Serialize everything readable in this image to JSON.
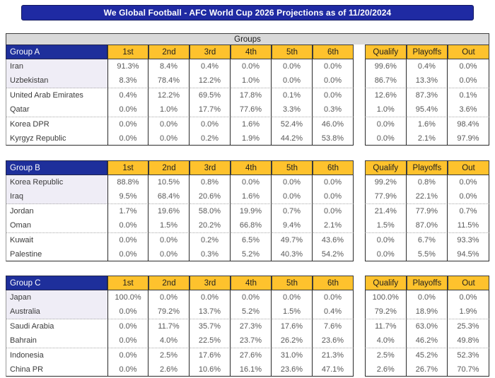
{
  "title": "We Global Football - AFC World Cup 2026 Projections as of 11/20/2024",
  "section_header": "Groups",
  "position_headers": [
    "1st",
    "2nd",
    "3rd",
    "4th",
    "5th",
    "6th"
  ],
  "outcome_headers": [
    "Qualify",
    "Playoffs",
    "Out"
  ],
  "colors": {
    "title_bar_blue": "#1f2aa3",
    "group_header_blue": "#1e2f9b",
    "header_gold": "#fec22d",
    "section_band_gray": "#d9d9d9",
    "qualified_row_highlight": "#efedf6"
  },
  "groups": [
    {
      "name": "Group A",
      "teams": [
        {
          "team": "Iran",
          "highlight": true,
          "positions": [
            "91.3%",
            "8.4%",
            "0.4%",
            "0.0%",
            "0.0%",
            "0.0%"
          ],
          "outcomes": [
            "99.6%",
            "0.4%",
            "0.0%"
          ]
        },
        {
          "team": "Uzbekistan",
          "highlight": true,
          "positions": [
            "8.3%",
            "78.4%",
            "12.2%",
            "1.0%",
            "0.0%",
            "0.0%"
          ],
          "outcomes": [
            "86.7%",
            "13.3%",
            "0.0%"
          ]
        },
        {
          "team": "United Arab Emirates",
          "highlight": false,
          "positions": [
            "0.4%",
            "12.2%",
            "69.5%",
            "17.8%",
            "0.1%",
            "0.0%"
          ],
          "outcomes": [
            "12.6%",
            "87.3%",
            "0.1%"
          ]
        },
        {
          "team": "Qatar",
          "highlight": false,
          "positions": [
            "0.0%",
            "1.0%",
            "17.7%",
            "77.6%",
            "3.3%",
            "0.3%"
          ],
          "outcomes": [
            "1.0%",
            "95.4%",
            "3.6%"
          ]
        },
        {
          "team": "Korea DPR",
          "highlight": false,
          "positions": [
            "0.0%",
            "0.0%",
            "0.0%",
            "1.6%",
            "52.4%",
            "46.0%"
          ],
          "outcomes": [
            "0.0%",
            "1.6%",
            "98.4%"
          ]
        },
        {
          "team": "Kyrgyz Republic",
          "highlight": false,
          "positions": [
            "0.0%",
            "0.0%",
            "0.2%",
            "1.9%",
            "44.2%",
            "53.8%"
          ],
          "outcomes": [
            "0.0%",
            "2.1%",
            "97.9%"
          ]
        }
      ]
    },
    {
      "name": "Group B",
      "teams": [
        {
          "team": "Korea Republic",
          "highlight": true,
          "positions": [
            "88.8%",
            "10.5%",
            "0.8%",
            "0.0%",
            "0.0%",
            "0.0%"
          ],
          "outcomes": [
            "99.2%",
            "0.8%",
            "0.0%"
          ]
        },
        {
          "team": "Iraq",
          "highlight": true,
          "positions": [
            "9.5%",
            "68.4%",
            "20.6%",
            "1.6%",
            "0.0%",
            "0.0%"
          ],
          "outcomes": [
            "77.9%",
            "22.1%",
            "0.0%"
          ]
        },
        {
          "team": "Jordan",
          "highlight": false,
          "positions": [
            "1.7%",
            "19.6%",
            "58.0%",
            "19.9%",
            "0.7%",
            "0.0%"
          ],
          "outcomes": [
            "21.4%",
            "77.9%",
            "0.7%"
          ]
        },
        {
          "team": "Oman",
          "highlight": false,
          "positions": [
            "0.0%",
            "1.5%",
            "20.2%",
            "66.8%",
            "9.4%",
            "2.1%"
          ],
          "outcomes": [
            "1.5%",
            "87.0%",
            "11.5%"
          ]
        },
        {
          "team": "Kuwait",
          "highlight": false,
          "positions": [
            "0.0%",
            "0.0%",
            "0.2%",
            "6.5%",
            "49.7%",
            "43.6%"
          ],
          "outcomes": [
            "0.0%",
            "6.7%",
            "93.3%"
          ]
        },
        {
          "team": "Palestine",
          "highlight": false,
          "positions": [
            "0.0%",
            "0.0%",
            "0.3%",
            "5.2%",
            "40.3%",
            "54.2%"
          ],
          "outcomes": [
            "0.0%",
            "5.5%",
            "94.5%"
          ]
        }
      ]
    },
    {
      "name": "Group C",
      "teams": [
        {
          "team": "Japan",
          "highlight": true,
          "positions": [
            "100.0%",
            "0.0%",
            "0.0%",
            "0.0%",
            "0.0%",
            "0.0%"
          ],
          "outcomes": [
            "100.0%",
            "0.0%",
            "0.0%"
          ]
        },
        {
          "team": "Australia",
          "highlight": true,
          "positions": [
            "0.0%",
            "79.2%",
            "13.7%",
            "5.2%",
            "1.5%",
            "0.4%"
          ],
          "outcomes": [
            "79.2%",
            "18.9%",
            "1.9%"
          ]
        },
        {
          "team": "Saudi Arabia",
          "highlight": false,
          "positions": [
            "0.0%",
            "11.7%",
            "35.7%",
            "27.3%",
            "17.6%",
            "7.6%"
          ],
          "outcomes": [
            "11.7%",
            "63.0%",
            "25.3%"
          ]
        },
        {
          "team": "Bahrain",
          "highlight": false,
          "positions": [
            "0.0%",
            "4.0%",
            "22.5%",
            "23.7%",
            "26.2%",
            "23.6%"
          ],
          "outcomes": [
            "4.0%",
            "46.2%",
            "49.8%"
          ]
        },
        {
          "team": "Indonesia",
          "highlight": false,
          "positions": [
            "0.0%",
            "2.5%",
            "17.6%",
            "27.6%",
            "31.0%",
            "21.3%"
          ],
          "outcomes": [
            "2.5%",
            "45.2%",
            "52.3%"
          ]
        },
        {
          "team": "China PR",
          "highlight": false,
          "positions": [
            "0.0%",
            "2.6%",
            "10.6%",
            "16.1%",
            "23.6%",
            "47.1%"
          ],
          "outcomes": [
            "2.6%",
            "26.7%",
            "70.7%"
          ]
        }
      ]
    }
  ]
}
